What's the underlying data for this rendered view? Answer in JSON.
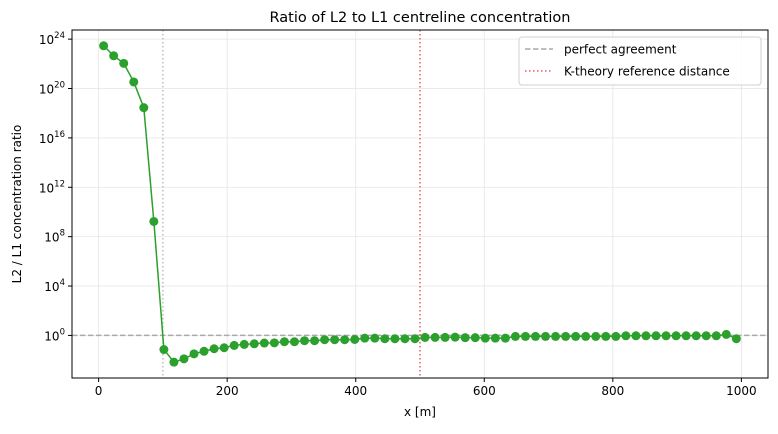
{
  "chart_data": {
    "type": "line",
    "title": "Ratio of L2 to L1 centreline concentration",
    "xlabel": "x [m]",
    "ylabel": "L2 / L1 concentration ratio",
    "xlim": [
      -41.4,
      1041.4
    ],
    "ylim_log10": [
      -3.45,
      24.74
    ],
    "yscale": "log",
    "grid": true,
    "legend_placement": "upper right",
    "xticks": [
      0,
      200,
      400,
      600,
      800,
      1000
    ],
    "xtick_labels": [
      "0",
      "200",
      "400",
      "600",
      "800",
      "1000"
    ],
    "yticks_exponents": [
      0,
      4,
      8,
      12,
      16,
      20,
      24
    ],
    "ytick_base": "10",
    "series": [
      {
        "color": "#2ca02c",
        "marker": "circle",
        "x_spacing": 15.625,
        "x_first": 7.8125,
        "values": [
          2.9e+23,
          4.5e+22,
          1.1e+22,
          3.4e+20,
          2.8e+18,
          1700000000.0,
          0.072,
          0.0068,
          0.0126,
          0.032,
          0.052,
          0.083,
          0.1,
          0.155,
          0.186,
          0.21,
          0.24,
          0.25,
          0.31,
          0.31,
          0.37,
          0.37,
          0.45,
          0.45,
          0.45,
          0.47,
          0.6,
          0.6,
          0.54,
          0.54,
          0.54,
          0.54,
          0.69,
          0.69,
          0.69,
          0.72,
          0.66,
          0.66,
          0.6,
          0.6,
          0.6,
          0.83,
          0.83,
          0.83,
          0.83,
          0.83,
          0.83,
          0.83,
          0.83,
          0.83,
          0.83,
          0.83,
          0.93,
          0.93,
          0.93,
          0.93,
          0.93,
          0.93,
          0.93,
          0.93,
          0.93,
          0.93,
          1.2,
          0.54
        ]
      }
    ],
    "reference_lines": [
      {
        "label": "perfect agreement",
        "orientation": "horizontal",
        "value": 1,
        "style": "dashed",
        "color": "#aaaaaa"
      },
      {
        "label": "K-theory reference distance",
        "orientation": "vertical",
        "value": 500,
        "style": "dotted",
        "color": "#e06060"
      },
      {
        "orientation": "vertical",
        "value": 100,
        "style": "dotted",
        "color": "#bbbbbb"
      }
    ]
  }
}
